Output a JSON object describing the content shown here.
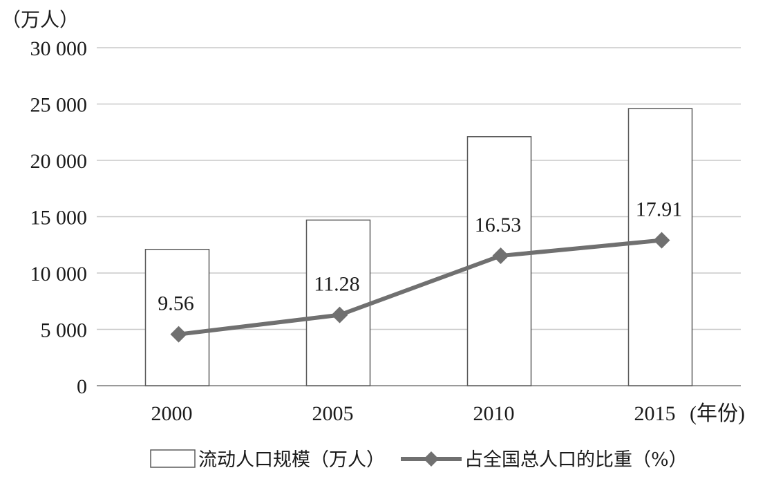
{
  "chart_data": {
    "type": "bar",
    "y_unit": "（万人）",
    "x_unit": "(年份)",
    "categories": [
      "2000",
      "2005",
      "2010",
      "2015"
    ],
    "ylim": [
      0,
      30000
    ],
    "y_ticks": [
      {
        "value": 0,
        "label": "0"
      },
      {
        "value": 5000,
        "label": "5 000"
      },
      {
        "value": 10000,
        "label": "10 000"
      },
      {
        "value": 15000,
        "label": "15 000"
      },
      {
        "value": 20000,
        "label": "20 000"
      },
      {
        "value": 25000,
        "label": "25 000"
      },
      {
        "value": 30000,
        "label": "30 000"
      }
    ],
    "grid": true,
    "legend_position": "bottom",
    "series": [
      {
        "name": "流动人口规模（万人）",
        "kind": "bar",
        "values": [
          12100,
          14700,
          22100,
          24600
        ],
        "color": "#ffffff"
      },
      {
        "name": "占全国总人口的比重（%）",
        "kind": "line",
        "values": [
          9.56,
          11.28,
          16.53,
          17.91
        ],
        "labels": [
          "9.56",
          "11.28",
          "16.53",
          "17.91"
        ],
        "color": "#707070"
      }
    ]
  }
}
